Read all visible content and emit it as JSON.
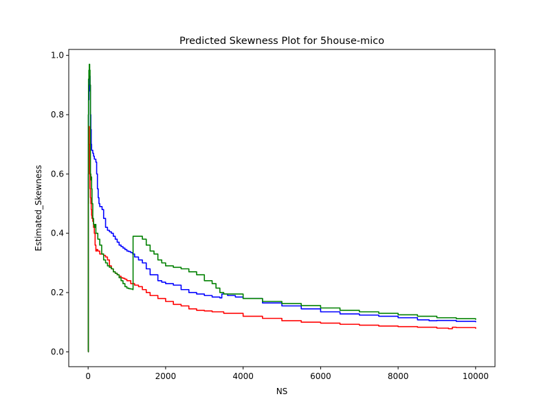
{
  "chart_data": {
    "type": "line",
    "title": "Predicted Skewness Plot for 5house-mico",
    "xlabel": "NS",
    "ylabel": "Estimated_Skewness",
    "xlim": [
      -500,
      10500
    ],
    "ylim": [
      -0.05,
      1.02
    ],
    "xticks": [
      0,
      2000,
      4000,
      6000,
      8000,
      10000
    ],
    "xtick_labels": [
      "0",
      "2000",
      "4000",
      "6000",
      "8000",
      "10000"
    ],
    "yticks": [
      0.0,
      0.2,
      0.4,
      0.6,
      0.8,
      1.0
    ],
    "ytick_labels": [
      "0.0",
      "0.2",
      "0.4",
      "0.6",
      "0.8",
      "1.0"
    ],
    "grid": false,
    "legend": "none",
    "series": [
      {
        "color": "#0000ff",
        "x": [
          0,
          5,
          10,
          20,
          30,
          40,
          50,
          60,
          70,
          80,
          90,
          100,
          120,
          140,
          160,
          180,
          200,
          220,
          240,
          260,
          280,
          300,
          330,
          360,
          400,
          450,
          500,
          550,
          600,
          650,
          700,
          750,
          800,
          850,
          900,
          950,
          1000,
          1050,
          1100,
          1150,
          1200,
          1300,
          1400,
          1500,
          1600,
          1700,
          1800,
          1900,
          2000,
          2200,
          2400,
          2600,
          2800,
          3000,
          3200,
          3400,
          3450,
          3600,
          3800,
          4000,
          4500,
          5000,
          5500,
          6000,
          6500,
          7000,
          7500,
          8000,
          8500,
          8800,
          9000,
          9500,
          10000
        ],
        "y": [
          0.0,
          0.6,
          0.85,
          0.9,
          0.88,
          0.93,
          0.9,
          0.8,
          0.75,
          0.7,
          0.68,
          0.68,
          0.67,
          0.66,
          0.65,
          0.65,
          0.64,
          0.6,
          0.55,
          0.52,
          0.5,
          0.49,
          0.49,
          0.48,
          0.45,
          0.42,
          0.41,
          0.405,
          0.4,
          0.39,
          0.38,
          0.37,
          0.36,
          0.355,
          0.35,
          0.345,
          0.34,
          0.338,
          0.335,
          0.33,
          0.32,
          0.31,
          0.3,
          0.28,
          0.26,
          0.26,
          0.24,
          0.235,
          0.23,
          0.225,
          0.21,
          0.2,
          0.195,
          0.19,
          0.185,
          0.182,
          0.195,
          0.19,
          0.185,
          0.18,
          0.165,
          0.155,
          0.145,
          0.135,
          0.128,
          0.124,
          0.12,
          0.115,
          0.108,
          0.105,
          0.106,
          0.103,
          0.1
        ]
      },
      {
        "color": "#ff0000",
        "x": [
          0,
          5,
          10,
          20,
          30,
          40,
          50,
          60,
          70,
          80,
          90,
          100,
          120,
          140,
          160,
          180,
          200,
          220,
          250,
          300,
          350,
          400,
          450,
          500,
          550,
          600,
          650,
          700,
          750,
          800,
          850,
          900,
          950,
          1000,
          1100,
          1200,
          1300,
          1400,
          1500,
          1600,
          1800,
          2000,
          2200,
          2400,
          2600,
          2800,
          3000,
          3200,
          3500,
          4000,
          4500,
          5000,
          5500,
          6000,
          6500,
          7000,
          7500,
          8000,
          8500,
          9000,
          9300,
          9400,
          9500,
          10000
        ],
        "y": [
          0.0,
          0.5,
          0.7,
          0.76,
          0.7,
          0.6,
          0.55,
          0.52,
          0.5,
          0.48,
          0.46,
          0.45,
          0.44,
          0.42,
          0.4,
          0.36,
          0.34,
          0.345,
          0.34,
          0.33,
          0.33,
          0.325,
          0.32,
          0.31,
          0.29,
          0.28,
          0.27,
          0.265,
          0.26,
          0.255,
          0.25,
          0.248,
          0.245,
          0.24,
          0.23,
          0.225,
          0.22,
          0.21,
          0.2,
          0.19,
          0.18,
          0.17,
          0.16,
          0.155,
          0.145,
          0.14,
          0.138,
          0.135,
          0.13,
          0.12,
          0.113,
          0.105,
          0.1,
          0.097,
          0.093,
          0.09,
          0.087,
          0.085,
          0.083,
          0.08,
          0.078,
          0.083,
          0.082,
          0.078
        ]
      },
      {
        "color": "#008000",
        "x": [
          0,
          5,
          10,
          20,
          30,
          40,
          50,
          60,
          70,
          80,
          90,
          100,
          120,
          140,
          160,
          180,
          200,
          250,
          300,
          350,
          400,
          450,
          500,
          550,
          600,
          650,
          700,
          750,
          800,
          850,
          900,
          950,
          1000,
          1050,
          1100,
          1150,
          1160,
          1200,
          1300,
          1400,
          1500,
          1600,
          1700,
          1800,
          1900,
          2000,
          2200,
          2400,
          2600,
          2800,
          3000,
          3200,
          3300,
          3400,
          3500,
          4000,
          4500,
          5000,
          5500,
          6000,
          6500,
          7000,
          7500,
          8000,
          8500,
          9000,
          9500,
          10000
        ],
        "y": [
          0.0,
          0.8,
          0.92,
          0.95,
          0.97,
          0.95,
          0.9,
          0.6,
          0.58,
          0.59,
          0.55,
          0.5,
          0.45,
          0.43,
          0.42,
          0.43,
          0.4,
          0.38,
          0.36,
          0.33,
          0.31,
          0.3,
          0.29,
          0.285,
          0.28,
          0.27,
          0.265,
          0.26,
          0.25,
          0.24,
          0.23,
          0.22,
          0.215,
          0.213,
          0.212,
          0.21,
          0.39,
          0.39,
          0.39,
          0.38,
          0.36,
          0.34,
          0.33,
          0.31,
          0.3,
          0.29,
          0.285,
          0.28,
          0.27,
          0.26,
          0.24,
          0.23,
          0.215,
          0.2,
          0.195,
          0.18,
          0.17,
          0.163,
          0.156,
          0.148,
          0.14,
          0.135,
          0.13,
          0.125,
          0.12,
          0.115,
          0.112,
          0.108
        ]
      }
    ]
  }
}
